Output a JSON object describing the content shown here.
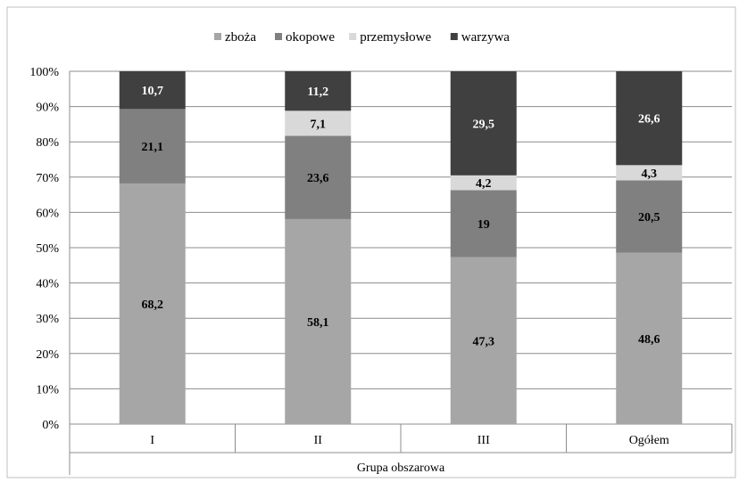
{
  "chart_data": {
    "type": "bar",
    "stacked": "percent",
    "categories": [
      "I",
      "II",
      "III",
      "Ogółem"
    ],
    "series": [
      {
        "name": "zboża",
        "color": "#a6a6a6",
        "label_color": "#000000",
        "values": [
          68.2,
          58.1,
          47.3,
          48.6
        ]
      },
      {
        "name": "okopowe",
        "color": "#808080",
        "label_color": "#000000",
        "values": [
          21.1,
          23.6,
          19,
          20.5
        ]
      },
      {
        "name": "przemysłowe",
        "color": "#d9d9d9",
        "label_color": "#000000",
        "values": [
          null,
          7.1,
          4.2,
          4.3
        ]
      },
      {
        "name": "warzywa",
        "color": "#404040",
        "label_color": "#ffffff",
        "values": [
          10.7,
          11.2,
          29.5,
          26.6
        ]
      }
    ],
    "data_labels": [
      [
        "68,2",
        "58,1",
        "47,3",
        "48,6"
      ],
      [
        "21,1",
        "23,6",
        "19",
        "20,5"
      ],
      [
        "",
        "7,1",
        "4,2",
        "4,3"
      ],
      [
        "10,7",
        "11,2",
        "29,5",
        "26,6"
      ]
    ],
    "y_ticks": [
      "0%",
      "10%",
      "20%",
      "30%",
      "40%",
      "50%",
      "60%",
      "70%",
      "80%",
      "90%",
      "100%"
    ],
    "ylim": [
      0,
      100
    ],
    "xlabel": "Grupa obszarowa",
    "ylabel": "",
    "title": "",
    "grid": true,
    "legend_position": "top-center"
  }
}
